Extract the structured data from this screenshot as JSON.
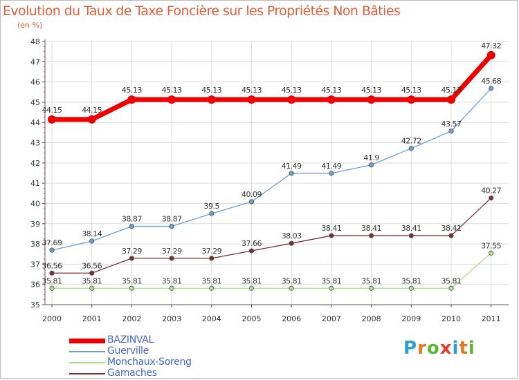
{
  "title": "Evolution du Taux de Taxe Foncière sur les Propriétés Non Bâties",
  "subtitle": "(en %)",
  "brand": {
    "letters": [
      "P",
      "r",
      "o",
      "x",
      "i",
      "t",
      "i"
    ],
    "colors": [
      "#2a9fd6",
      "#e07a1f",
      "#5cb531",
      "#e63c2e",
      "#2a9fd6",
      "#e07a1f",
      "#5cb531"
    ]
  },
  "chart_data": {
    "type": "line",
    "x": [
      "2000",
      "2001",
      "2002",
      "2003",
      "2004",
      "2005",
      "2006",
      "2007",
      "2008",
      "2009",
      "2010",
      "2011"
    ],
    "ylim": [
      35,
      48
    ],
    "yticks": [
      "35",
      "36",
      "37",
      "38",
      "39",
      "40",
      "41",
      "42",
      "43",
      "44",
      "45",
      "46",
      "47",
      "48"
    ],
    "grid": true,
    "legend_position": "bottom-left",
    "series": [
      {
        "name": "BAZINVAL",
        "color": "#ee0000",
        "values": [
          44.15,
          44.15,
          45.13,
          45.13,
          45.13,
          45.13,
          45.13,
          45.13,
          45.13,
          45.13,
          45.13,
          47.32
        ],
        "labels": [
          "44.15",
          "44.15",
          "45.13",
          "45.13",
          "45.13",
          "45.13",
          "45.13",
          "45.13",
          "45.13",
          "45.13",
          "45.13",
          "47.32"
        ]
      },
      {
        "name": "Guerville",
        "color": "#6e9fcc",
        "values": [
          37.69,
          38.14,
          38.87,
          38.87,
          39.5,
          40.09,
          41.49,
          41.49,
          41.9,
          42.72,
          43.57,
          45.68
        ],
        "labels": [
          "37.69",
          "38.14",
          "38.87",
          "38.87",
          "39.5",
          "40.09",
          "41.49",
          "41.49",
          "41.9",
          "42.72",
          "43.57",
          "45.68"
        ]
      },
      {
        "name": "Monchaux-Soreng",
        "color": "#a8e08a",
        "values": [
          35.81,
          35.81,
          35.81,
          35.81,
          35.81,
          35.81,
          35.81,
          35.81,
          35.81,
          35.81,
          35.81,
          37.55
        ],
        "labels": [
          "35.81",
          "35.81",
          "35.81",
          "35.81",
          "35.81",
          "35.81",
          "35.81",
          "35.81",
          "35.81",
          "35.81",
          "35.81",
          "37.55"
        ]
      },
      {
        "name": "Gamaches",
        "color": "#7a2e2e",
        "values": [
          36.56,
          36.56,
          37.29,
          37.29,
          37.29,
          37.66,
          38.03,
          38.41,
          38.41,
          38.41,
          38.41,
          40.27
        ],
        "labels": [
          "36.56",
          "36.56",
          "37.29",
          "37.29",
          "37.29",
          "37.66",
          "38.03",
          "38.41",
          "38.41",
          "38.41",
          "38.41",
          "40.27"
        ]
      }
    ]
  }
}
